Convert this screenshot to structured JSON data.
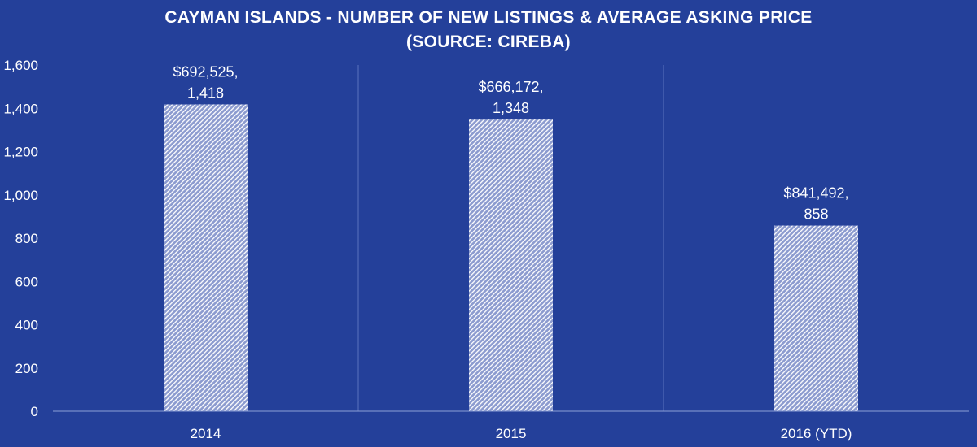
{
  "chart_data": {
    "type": "bar",
    "title": "CAYMAN ISLANDS - NUMBER OF NEW LISTINGS & AVERAGE ASKING PRICE",
    "subtitle": "(SOURCE: CIREBA)",
    "categories": [
      "2014",
      "2015",
      "2016 (YTD)"
    ],
    "values": [
      1418,
      1348,
      858
    ],
    "data_labels": [
      [
        "$692,525,",
        "1,418"
      ],
      [
        "$666,172,",
        "1,348"
      ],
      [
        "$841,492,",
        "858"
      ]
    ],
    "y_ticks": [
      "0",
      "200",
      "400",
      "600",
      "800",
      "1,000",
      "1,200",
      "1,400",
      "1,600"
    ],
    "ylim": [
      0,
      1600
    ],
    "xlabel": "",
    "ylabel": "",
    "grid": "vertical category separators",
    "bar_fill": "white diagonal hatch",
    "colors": {
      "background": "#24409a",
      "text": "#ffffff",
      "bar_hatch": "#ffffff",
      "grid": "#5a72bd",
      "axis": "#8c9fd6"
    }
  }
}
